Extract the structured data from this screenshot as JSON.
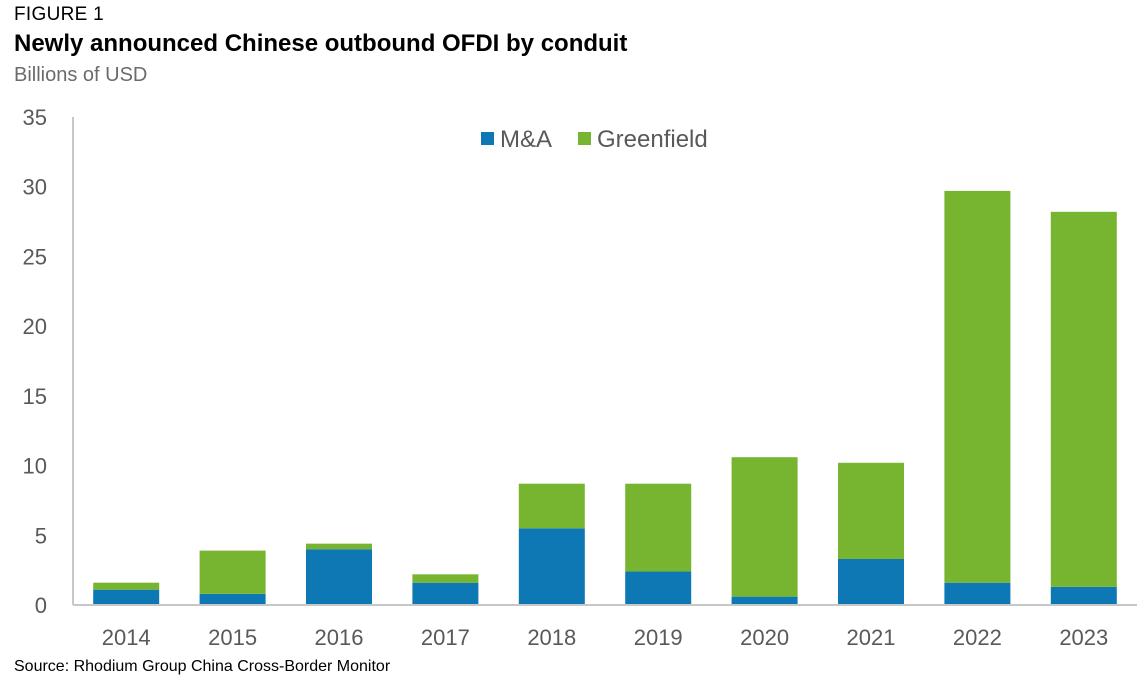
{
  "figure_label": "FIGURE 1",
  "title": "Newly announced Chinese outbound OFDI by conduit",
  "subtitle": "Billions of USD",
  "source": "Source: Rhodium Group China Cross-Border Monitor",
  "colors": {
    "ma": "#0E78B4",
    "greenfield": "#77B530",
    "axis": "#C8C8C8",
    "text": "#595959"
  },
  "chart_data": {
    "type": "bar",
    "stacked": true,
    "categories": [
      "2014",
      "2015",
      "2016",
      "2017",
      "2018",
      "2019",
      "2020",
      "2021",
      "2022",
      "2023"
    ],
    "series": [
      {
        "name": "M&A",
        "values": [
          1.1,
          0.8,
          4.0,
          1.6,
          5.5,
          2.4,
          0.6,
          3.3,
          1.6,
          1.3
        ]
      },
      {
        "name": "Greenfield",
        "values": [
          0.5,
          3.1,
          0.4,
          0.6,
          3.2,
          6.3,
          10.0,
          6.9,
          28.1,
          26.9
        ]
      }
    ],
    "ylim": [
      0,
      35
    ],
    "yticks": [
      0,
      5,
      10,
      15,
      20,
      25,
      30,
      35
    ],
    "grid": false,
    "legend_position": "top-center"
  }
}
